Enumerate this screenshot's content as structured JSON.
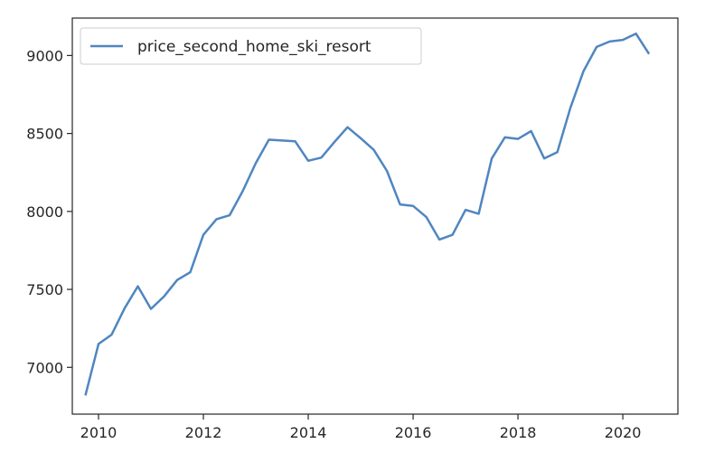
{
  "chart_data": {
    "type": "line",
    "title": "",
    "xlabel": "",
    "ylabel": "",
    "xlim": [
      2009.5,
      2021.05
    ],
    "ylim": [
      6700,
      9240
    ],
    "x_ticks": [
      2010,
      2012,
      2014,
      2016,
      2018,
      2020
    ],
    "x_tick_labels": [
      "2010",
      "2012",
      "2014",
      "2016",
      "2018",
      "2020"
    ],
    "y_ticks": [
      7000,
      7500,
      8000,
      8500,
      9000
    ],
    "y_tick_labels": [
      "7000",
      "7500",
      "8000",
      "8500",
      "9000"
    ],
    "grid": false,
    "legend_position": "upper-left",
    "series": [
      {
        "name": "price_second_home_ski_resort",
        "color": "#4f86c0",
        "x": [
          2009.75,
          2010.0,
          2010.25,
          2010.5,
          2010.75,
          2011.0,
          2011.25,
          2011.5,
          2011.75,
          2012.0,
          2012.25,
          2012.5,
          2012.75,
          2013.0,
          2013.25,
          2013.5,
          2013.75,
          2014.0,
          2014.25,
          2014.5,
          2014.75,
          2015.0,
          2015.25,
          2015.5,
          2015.75,
          2016.0,
          2016.25,
          2016.5,
          2016.75,
          2017.0,
          2017.25,
          2017.5,
          2017.75,
          2018.0,
          2018.25,
          2018.5,
          2018.75,
          2019.0,
          2019.25,
          2019.5,
          2019.75,
          2020.0,
          2020.25,
          2020.5
        ],
        "y": [
          6820,
          7150,
          7210,
          7380,
          7520,
          7375,
          7455,
          7560,
          7610,
          7850,
          7950,
          7975,
          8130,
          8310,
          8460,
          8455,
          8450,
          8325,
          8345,
          8445,
          8540,
          8470,
          8395,
          8260,
          8045,
          8035,
          7965,
          7820,
          7850,
          8010,
          7985,
          8340,
          8475,
          8465,
          8515,
          8340,
          8380,
          8665,
          8900,
          9055,
          9090,
          9100,
          9140,
          9010
        ]
      }
    ]
  }
}
